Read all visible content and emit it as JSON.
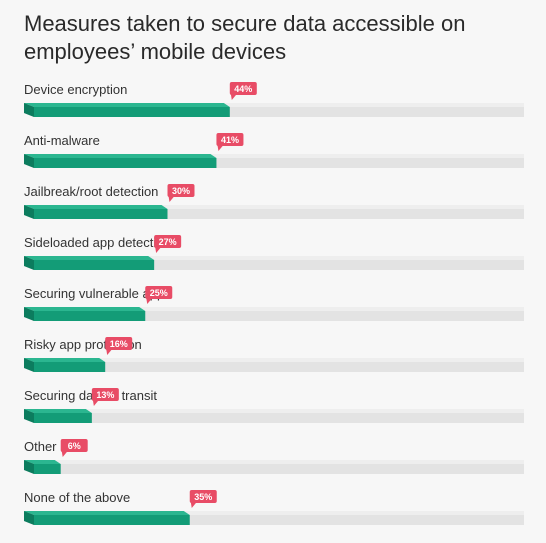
{
  "title": "Measures taken to secure data accessible on employees’ mobile devices",
  "colors": {
    "background": "#f7f7f7",
    "bar_fill": "#139c77",
    "bar_top": "#2bb690",
    "bar_side": "#0c7c5e",
    "track": "#e3e3e3",
    "track_top": "#eeeeee",
    "track_side": "#d3d3d3",
    "badge": "#e84c66"
  },
  "chart_data": {
    "type": "bar",
    "orientation": "horizontal",
    "categories": [
      "Device encryption",
      "Anti-malware",
      "Jailbreak/root detection",
      "Sideloaded app detection",
      "Securing vulnerable apps",
      "Risky app protection",
      "Securing data in transit",
      "Other",
      "None of the above"
    ],
    "values": [
      44,
      41,
      30,
      27,
      25,
      16,
      13,
      6,
      35
    ],
    "labels": [
      "44%",
      "41%",
      "30%",
      "27%",
      "25%",
      "16%",
      "13%",
      "6%",
      "35%"
    ],
    "xlim": [
      0,
      100
    ],
    "unit": "%",
    "title": "Measures taken to secure data accessible on employees’ mobile devices",
    "grid": false
  }
}
